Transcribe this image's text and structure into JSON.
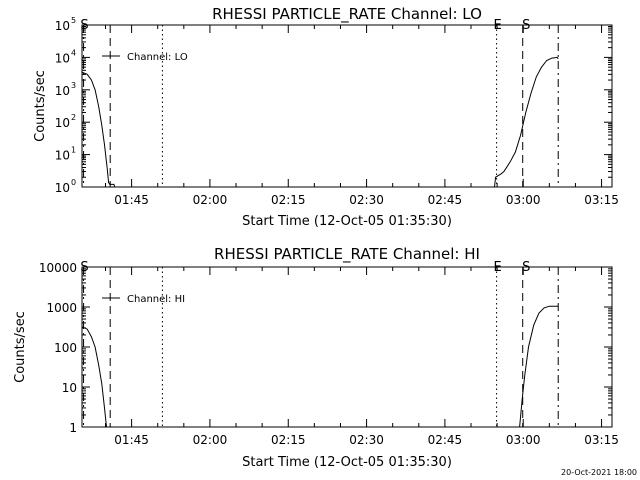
{
  "footer_date": "20-Oct-2021 18:00",
  "chart_data": [
    {
      "type": "line",
      "title": "RHESSI PARTICLE_RATE Channel: LO",
      "xlabel": "Start Time (12-Oct-05 01:35:30)",
      "ylabel": "Counts/sec",
      "x_unit": "minutes after 01:35:30",
      "xlim": [
        0,
        101.5
      ],
      "x_ticks": [
        {
          "x": 9.5,
          "label": "01:45"
        },
        {
          "x": 24.5,
          "label": "02:00"
        },
        {
          "x": 39.5,
          "label": "02:15"
        },
        {
          "x": 54.5,
          "label": "02:30"
        },
        {
          "x": 69.5,
          "label": "02:45"
        },
        {
          "x": 84.5,
          "label": "03:00"
        },
        {
          "x": 99.5,
          "label": "03:15"
        }
      ],
      "y_scale": "log",
      "ylim": [
        1,
        100000
      ],
      "y_ticks": [
        {
          "v": 1,
          "base": "10",
          "exp": "0"
        },
        {
          "v": 10,
          "base": "10",
          "exp": "1"
        },
        {
          "v": 100,
          "base": "10",
          "exp": "2"
        },
        {
          "v": 1000,
          "base": "10",
          "exp": "3"
        },
        {
          "v": 10000,
          "base": "10",
          "exp": "4"
        },
        {
          "v": 100000,
          "base": "10",
          "exp": "5"
        }
      ],
      "legend": {
        "label": "Channel: LO",
        "placement": "top-left"
      },
      "markers": [
        {
          "x": 0.3,
          "label": "S",
          "style": "dash-dot"
        },
        {
          "x": 5.4,
          "label": "",
          "style": "dashed"
        },
        {
          "x": 15.4,
          "label": "",
          "style": "dotted"
        },
        {
          "x": 79.4,
          "label": "E",
          "style": "dotted"
        },
        {
          "x": 84.4,
          "label": "",
          "style": "dashed"
        },
        {
          "x": 84.9,
          "label": "S",
          "style": "none"
        },
        {
          "x": 91.2,
          "label": "",
          "style": "dash-dot"
        }
      ],
      "series": [
        {
          "segments": [
            [
              [
                0,
                3500
              ],
              [
                1,
                3000
              ],
              [
                1.8,
                2000
              ],
              [
                2.5,
                1000
              ],
              [
                3.2,
                300
              ],
              [
                3.8,
                80
              ],
              [
                4.3,
                20
              ],
              [
                4.8,
                4
              ],
              [
                5.1,
                1.4
              ],
              [
                5.3,
                1.2
              ],
              [
                6.1,
                1.2
              ],
              [
                6.3,
                1
              ]
            ],
            [
              [
                79.0,
                1
              ],
              [
                79.2,
                2
              ],
              [
                80.2,
                2.5
              ],
              [
                80.8,
                3
              ],
              [
                82,
                6
              ],
              [
                83,
                12
              ],
              [
                84,
                40
              ],
              [
                85,
                200
              ],
              [
                86,
                800
              ],
              [
                87,
                2500
              ],
              [
                88,
                5000
              ],
              [
                89,
                8000
              ],
              [
                90,
                9500
              ],
              [
                91,
                10000
              ],
              [
                91.2,
                9000
              ]
            ]
          ]
        }
      ]
    },
    {
      "type": "line",
      "title": "RHESSI PARTICLE_RATE Channel: HI",
      "xlabel": "Start Time (12-Oct-05 01:35:30)",
      "ylabel": "Counts/sec",
      "x_unit": "minutes after 01:35:30",
      "xlim": [
        0,
        101.5
      ],
      "x_ticks": [
        {
          "x": 9.5,
          "label": "01:45"
        },
        {
          "x": 24.5,
          "label": "02:00"
        },
        {
          "x": 39.5,
          "label": "02:15"
        },
        {
          "x": 54.5,
          "label": "02:30"
        },
        {
          "x": 69.5,
          "label": "02:45"
        },
        {
          "x": 84.5,
          "label": "03:00"
        },
        {
          "x": 99.5,
          "label": "03:15"
        }
      ],
      "y_scale": "log",
      "ylim": [
        1,
        10000
      ],
      "y_ticks": [
        {
          "v": 1,
          "label": "1"
        },
        {
          "v": 10,
          "label": "10"
        },
        {
          "v": 100,
          "label": "100"
        },
        {
          "v": 1000,
          "label": "1000"
        },
        {
          "v": 10000,
          "label": "10000"
        }
      ],
      "legend": {
        "label": "Channel: HI",
        "placement": "top-left"
      },
      "markers": [
        {
          "x": 0.3,
          "label": "S",
          "style": "dash-dot"
        },
        {
          "x": 5.4,
          "label": "",
          "style": "dashed"
        },
        {
          "x": 15.4,
          "label": "",
          "style": "dotted"
        },
        {
          "x": 79.4,
          "label": "E",
          "style": "dotted"
        },
        {
          "x": 84.4,
          "label": "",
          "style": "dashed"
        },
        {
          "x": 84.9,
          "label": "S",
          "style": "none"
        },
        {
          "x": 91.2,
          "label": "",
          "style": "dash-dot"
        }
      ],
      "series": [
        {
          "segments": [
            [
              [
                0,
                320
              ],
              [
                1,
                280
              ],
              [
                1.8,
                180
              ],
              [
                2.5,
                100
              ],
              [
                3.2,
                35
              ],
              [
                3.8,
                12
              ],
              [
                4.3,
                3
              ],
              [
                4.7,
                1
              ]
            ],
            [
              [
                83.8,
                1
              ],
              [
                84.3,
                5
              ],
              [
                84.8,
                20
              ],
              [
                85.5,
                100
              ],
              [
                86.5,
                350
              ],
              [
                87.5,
                700
              ],
              [
                88.5,
                950
              ],
              [
                89.5,
                1050
              ],
              [
                91.2,
                1050
              ]
            ]
          ]
        }
      ]
    }
  ]
}
